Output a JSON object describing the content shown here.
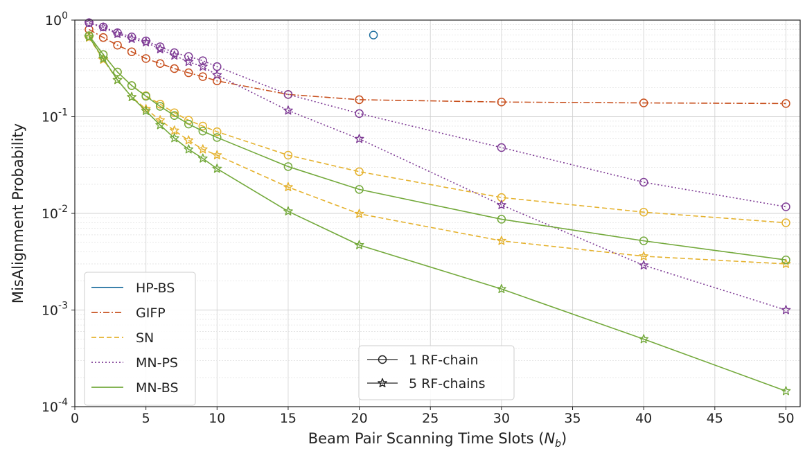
{
  "chart_data": {
    "type": "line",
    "xlabel": "Beam Pair Scanning Time Slots",
    "xlabel_math": "N",
    "xlabel_sub": "b",
    "ylabel": "MisAlignment Probability",
    "xlim": [
      0,
      51
    ],
    "ylim": [
      0.0001,
      1
    ],
    "yscale": "log",
    "grid": true,
    "x_ticks": [
      "0",
      "5",
      "10",
      "15",
      "20",
      "25",
      "30",
      "35",
      "40",
      "45",
      "50"
    ],
    "y_ticks": [
      {
        "base": "10",
        "exp": "0",
        "value": 1
      },
      {
        "base": "10",
        "exp": "-1",
        "value": 0.1
      },
      {
        "base": "10",
        "exp": "-2",
        "value": 0.01
      },
      {
        "base": "10",
        "exp": "-3",
        "value": 0.001
      },
      {
        "base": "10",
        "exp": "-4",
        "value": 0.0001
      }
    ],
    "legend_methods": {
      "placement": "lower-left",
      "entries": [
        {
          "label": "HP-BS",
          "color": "#1f6f9f",
          "dash": "solid"
        },
        {
          "label": "GIFP",
          "color": "#c8501e",
          "dash": "dashdot"
        },
        {
          "label": "SN",
          "color": "#e5b22e",
          "dash": "dashed"
        },
        {
          "label": "MN-PS",
          "color": "#7e3b95",
          "dash": "dotted"
        },
        {
          "label": "MN-BS",
          "color": "#73a93b",
          "dash": "solid"
        }
      ]
    },
    "legend_markers": {
      "placement": "lower-center",
      "entries": [
        {
          "label": "1 RF-chain",
          "marker": "circle"
        },
        {
          "label": "5 RF-chains",
          "marker": "star"
        }
      ]
    },
    "series": [
      {
        "method": "HP-BS",
        "marker": "circle",
        "color": "#1f6f9f",
        "dash": "solid",
        "x": [
          21
        ],
        "y": [
          0.7
        ]
      },
      {
        "method": "GIFP",
        "marker": "circle",
        "color": "#c8501e",
        "dash": "dashdot",
        "x": [
          1,
          2,
          3,
          4,
          5,
          6,
          7,
          8,
          9,
          10,
          15,
          20,
          30,
          40,
          50
        ],
        "y": [
          0.8,
          0.66,
          0.55,
          0.47,
          0.4,
          0.355,
          0.315,
          0.285,
          0.26,
          0.235,
          0.17,
          0.15,
          0.142,
          0.139,
          0.137
        ]
      },
      {
        "method": "SN",
        "marker": "circle",
        "color": "#e5b22e",
        "dash": "dashed",
        "x": [
          1,
          2,
          3,
          4,
          5,
          6,
          7,
          8,
          9,
          10,
          15,
          20,
          30,
          40,
          50
        ],
        "y": [
          0.68,
          0.44,
          0.29,
          0.21,
          0.165,
          0.135,
          0.11,
          0.092,
          0.08,
          0.07,
          0.04,
          0.027,
          0.0146,
          0.0103,
          0.008
        ]
      },
      {
        "method": "SN",
        "marker": "star",
        "color": "#e5b22e",
        "dash": "dashed",
        "x": [
          1,
          2,
          3,
          4,
          5,
          6,
          7,
          8,
          9,
          10,
          15,
          20,
          30,
          40,
          50
        ],
        "y": [
          0.66,
          0.39,
          0.24,
          0.16,
          0.12,
          0.092,
          0.072,
          0.057,
          0.046,
          0.04,
          0.0187,
          0.0099,
          0.0052,
          0.0036,
          0.003
        ]
      },
      {
        "method": "MN-PS",
        "marker": "circle",
        "color": "#7e3b95",
        "dash": "dotted",
        "x": [
          1,
          2,
          3,
          4,
          5,
          6,
          7,
          8,
          9,
          10,
          15,
          20,
          30,
          40,
          50
        ],
        "y": [
          0.94,
          0.85,
          0.74,
          0.67,
          0.61,
          0.53,
          0.46,
          0.42,
          0.38,
          0.33,
          0.17,
          0.108,
          0.048,
          0.021,
          0.0117
        ]
      },
      {
        "method": "MN-PS",
        "marker": "star",
        "color": "#7e3b95",
        "dash": "dotted",
        "x": [
          1,
          2,
          3,
          4,
          5,
          6,
          7,
          8,
          9,
          10,
          15,
          20,
          30,
          40,
          50
        ],
        "y": [
          0.93,
          0.84,
          0.72,
          0.64,
          0.59,
          0.5,
          0.43,
          0.37,
          0.33,
          0.27,
          0.116,
          0.059,
          0.0122,
          0.0029,
          0.001
        ]
      },
      {
        "method": "MN-BS",
        "marker": "circle",
        "color": "#73a93b",
        "dash": "solid",
        "x": [
          1,
          2,
          3,
          4,
          5,
          6,
          7,
          8,
          9,
          10,
          15,
          20,
          30,
          40,
          50
        ],
        "y": [
          0.69,
          0.44,
          0.29,
          0.21,
          0.163,
          0.128,
          0.103,
          0.084,
          0.071,
          0.061,
          0.0305,
          0.0177,
          0.0087,
          0.0052,
          0.0033
        ]
      },
      {
        "method": "MN-BS",
        "marker": "star",
        "color": "#73a93b",
        "dash": "solid",
        "x": [
          1,
          2,
          3,
          4,
          5,
          6,
          7,
          8,
          9,
          10,
          15,
          20,
          30,
          40,
          50
        ],
        "y": [
          0.67,
          0.4,
          0.24,
          0.16,
          0.115,
          0.082,
          0.06,
          0.046,
          0.037,
          0.029,
          0.0105,
          0.0047,
          0.00165,
          0.0005,
          0.000145
        ]
      }
    ]
  }
}
